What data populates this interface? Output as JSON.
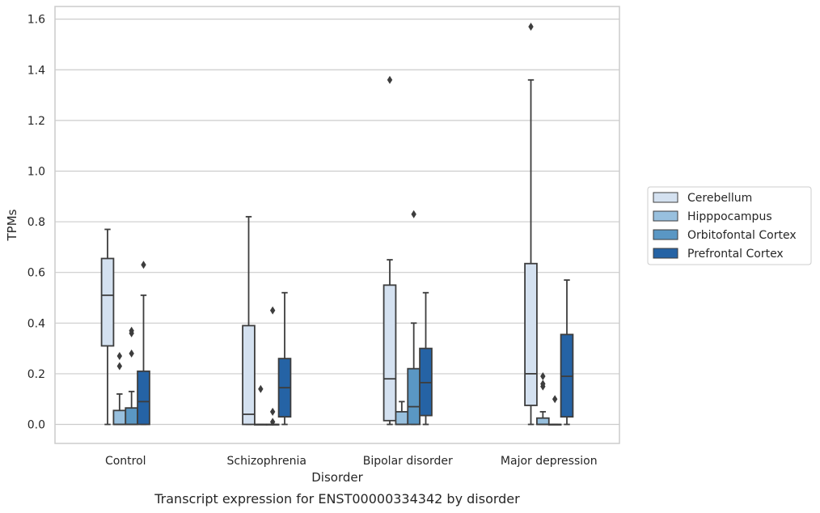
{
  "chart_data": {
    "type": "box",
    "caption": "Transcript expression for ENST00000334342 by disorder",
    "xlabel": "Disorder",
    "ylabel": "TPMs",
    "ylim": [
      -0.075,
      1.65
    ],
    "yticks": [
      0.0,
      0.2,
      0.4,
      0.6,
      0.8,
      1.0,
      1.2,
      1.4,
      1.6
    ],
    "ytick_labels": [
      "0.0",
      "0.2",
      "0.4",
      "0.6",
      "0.8",
      "1.0",
      "1.2",
      "1.4",
      "1.6"
    ],
    "grid": "horizontal",
    "legend_position": "right",
    "categories": [
      "Control",
      "Schizophrenia",
      "Bipolar disorder",
      "Major depression"
    ],
    "series": [
      {
        "name": "Cerebellum",
        "color": "#d4e1f0",
        "boxes": [
          {
            "whisker_low": 0.0,
            "q1": 0.31,
            "median": 0.51,
            "q3": 0.655,
            "whisker_high": 0.77,
            "outliers": []
          },
          {
            "whisker_low": 0.0,
            "q1": 0.0,
            "median": 0.04,
            "q3": 0.39,
            "whisker_high": 0.82,
            "outliers": []
          },
          {
            "whisker_low": 0.0,
            "q1": 0.015,
            "median": 0.18,
            "q3": 0.55,
            "whisker_high": 0.65,
            "outliers": [
              1.36
            ]
          },
          {
            "whisker_low": 0.0,
            "q1": 0.075,
            "median": 0.2,
            "q3": 0.635,
            "whisker_high": 1.36,
            "outliers": [
              1.57
            ]
          }
        ]
      },
      {
        "name": "Hipppocampus",
        "color": "#98c0de",
        "boxes": [
          {
            "whisker_low": 0.0,
            "q1": 0.0,
            "median": 0.0,
            "q3": 0.055,
            "whisker_high": 0.12,
            "outliers": [
              0.23,
              0.27
            ]
          },
          {
            "whisker_low": 0.0,
            "q1": 0.0,
            "median": 0.0,
            "q3": 0.0,
            "whisker_high": 0.0,
            "outliers": [
              0.14
            ]
          },
          {
            "whisker_low": 0.0,
            "q1": 0.0,
            "median": 0.0,
            "q3": 0.05,
            "whisker_high": 0.09,
            "outliers": []
          },
          {
            "whisker_low": 0.0,
            "q1": 0.0,
            "median": 0.0,
            "q3": 0.025,
            "whisker_high": 0.05,
            "outliers": [
              0.15,
              0.16,
              0.19
            ]
          }
        ]
      },
      {
        "name": "Orbitofontal Cortex",
        "color": "#5a97c4",
        "boxes": [
          {
            "whisker_low": 0.0,
            "q1": 0.0,
            "median": 0.0,
            "q3": 0.065,
            "whisker_high": 0.13,
            "outliers": [
              0.28,
              0.36,
              0.37
            ]
          },
          {
            "whisker_low": 0.0,
            "q1": 0.0,
            "median": 0.0,
            "q3": 0.0,
            "whisker_high": 0.0,
            "outliers": [
              0.01,
              0.05,
              0.45
            ]
          },
          {
            "whisker_low": 0.0,
            "q1": 0.0,
            "median": 0.07,
            "q3": 0.22,
            "whisker_high": 0.4,
            "outliers": [
              0.83
            ]
          },
          {
            "whisker_low": 0.0,
            "q1": 0.0,
            "median": 0.0,
            "q3": 0.0,
            "whisker_high": 0.0,
            "outliers": [
              0.1
            ]
          }
        ]
      },
      {
        "name": "Prefrontal Cortex",
        "color": "#2563a5",
        "boxes": [
          {
            "whisker_low": 0.0,
            "q1": 0.0,
            "median": 0.09,
            "q3": 0.21,
            "whisker_high": 0.51,
            "outliers": [
              0.63
            ]
          },
          {
            "whisker_low": 0.0,
            "q1": 0.03,
            "median": 0.145,
            "q3": 0.26,
            "whisker_high": 0.52,
            "outliers": []
          },
          {
            "whisker_low": 0.0,
            "q1": 0.035,
            "median": 0.165,
            "q3": 0.3,
            "whisker_high": 0.52,
            "outliers": []
          },
          {
            "whisker_low": 0.0,
            "q1": 0.03,
            "median": 0.19,
            "q3": 0.355,
            "whisker_high": 0.57,
            "outliers": []
          }
        ]
      }
    ]
  }
}
